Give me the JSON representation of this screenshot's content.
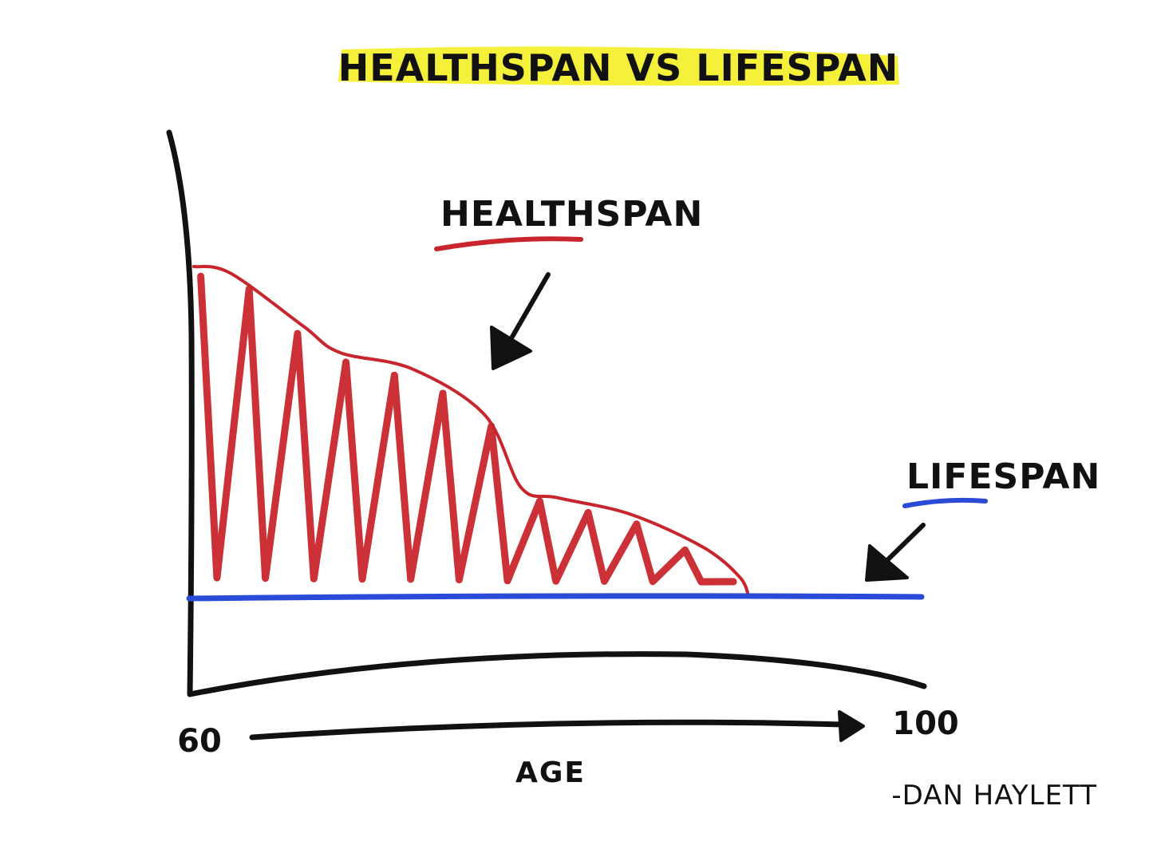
{
  "chart_data": {
    "type": "area",
    "title": "HEALTHSPAN VS LIFESPAN",
    "xlabel": "AGE",
    "x_range": [
      60,
      100
    ],
    "x_tick_labels": [
      "60",
      "100"
    ],
    "series": [
      {
        "name": "HEALTHSPAN",
        "color": "#c8262c",
        "fill": "hatched",
        "x": [
          60,
          62,
          66,
          68,
          72,
          76,
          78,
          80,
          84,
          88,
          90,
          90.5
        ],
        "y": [
          1.0,
          0.98,
          0.82,
          0.74,
          0.69,
          0.55,
          0.33,
          0.3,
          0.25,
          0.15,
          0.06,
          0.0
        ]
      },
      {
        "name": "LIFESPAN",
        "color": "#2a4bd7",
        "x": [
          60,
          100
        ],
        "y": [
          0,
          0
        ]
      }
    ],
    "annotations": [
      {
        "text": "HEALTHSPAN",
        "underline_color": "#c8262c",
        "arrow": "down-left"
      },
      {
        "text": "LIFESPAN",
        "underline_color": "#2a4bd7",
        "arrow": "down-left"
      }
    ],
    "grid": false,
    "legend": "none"
  },
  "signature": "-DAN HAYLETT",
  "colors": {
    "title_highlight": "#f5f03a",
    "ink": "#111111",
    "healthspan": "#c8262c",
    "lifespan": "#2a4bd7"
  }
}
